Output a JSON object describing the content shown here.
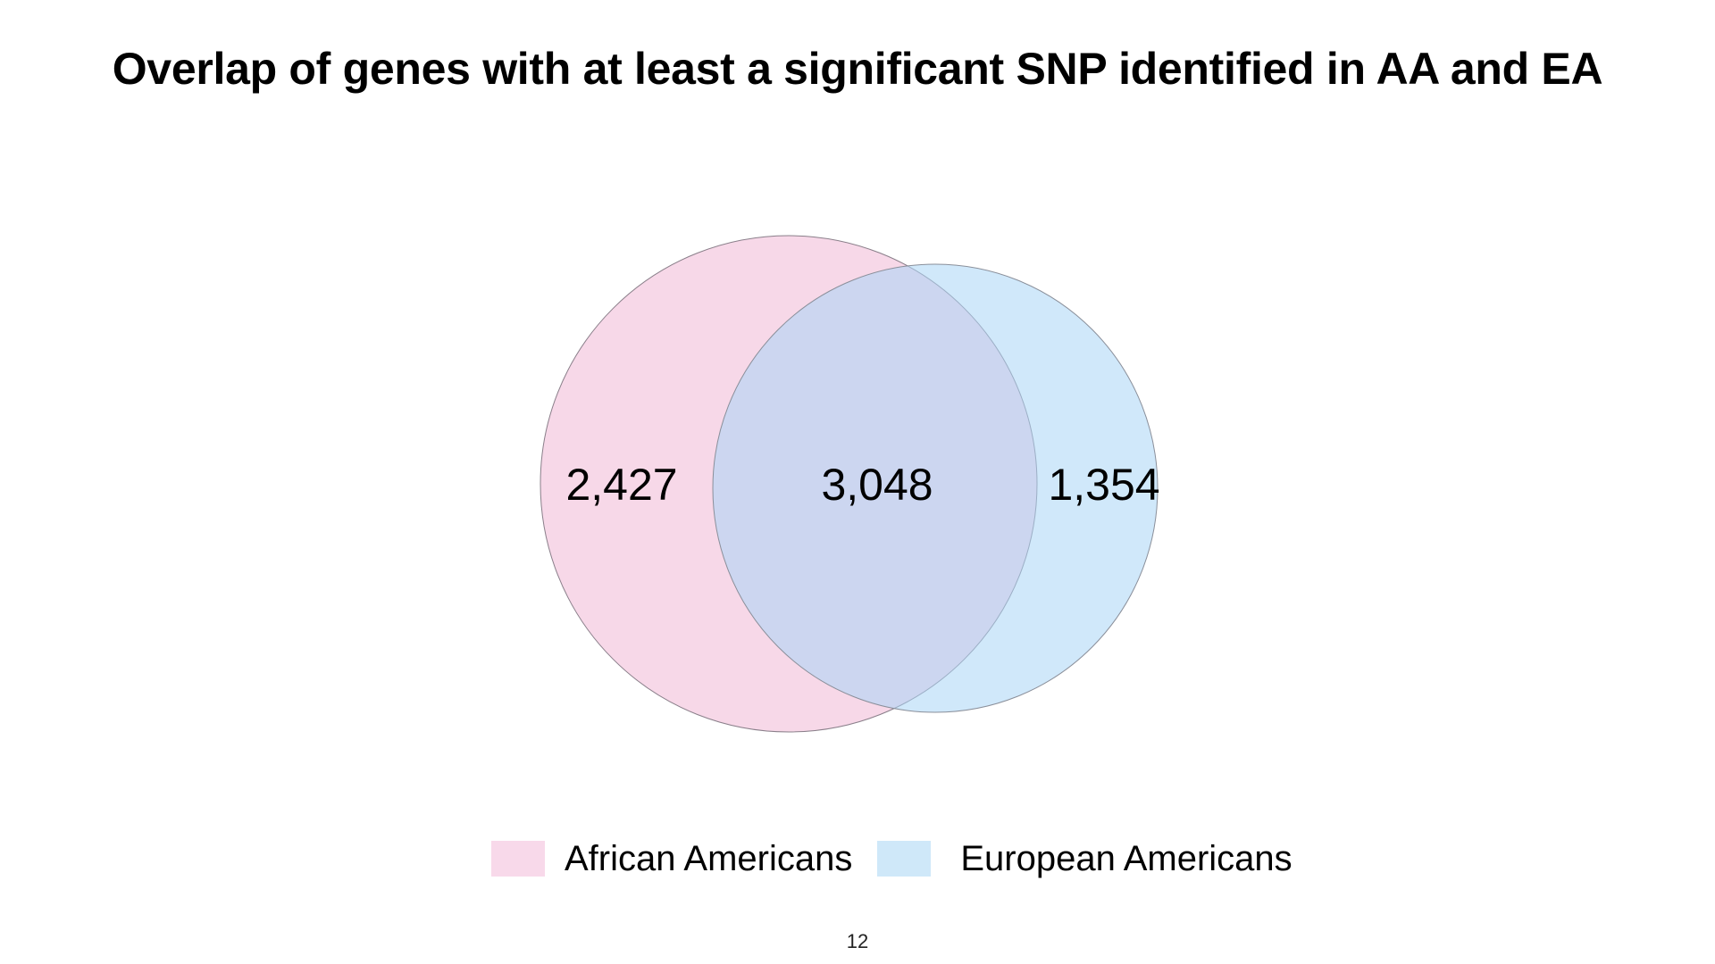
{
  "slide": {
    "title": "Overlap of genes with at least a significant SNP identified in AA and EA",
    "page_number": "12"
  },
  "venn": {
    "sets": [
      {
        "name": "African Americans",
        "color": "#f1b8d6",
        "exclusive_count": "2,427"
      },
      {
        "name": "European Americans",
        "color": "#a9d6f5",
        "exclusive_count": "1,354"
      }
    ],
    "intersection_count": "3,048"
  },
  "chart_data": {
    "type": "venn",
    "title": "Overlap of genes with at least a significant SNP identified in AA and EA",
    "sets": [
      "African Americans",
      "European Americans"
    ],
    "only_first": 2427,
    "intersection": 3048,
    "only_second": 1354,
    "legend_position": "bottom"
  },
  "legend": {
    "items": [
      {
        "label": "African Americans",
        "color": "#f8d9ea"
      },
      {
        "label": "European Americans",
        "color": "#cfe8f9"
      }
    ]
  }
}
